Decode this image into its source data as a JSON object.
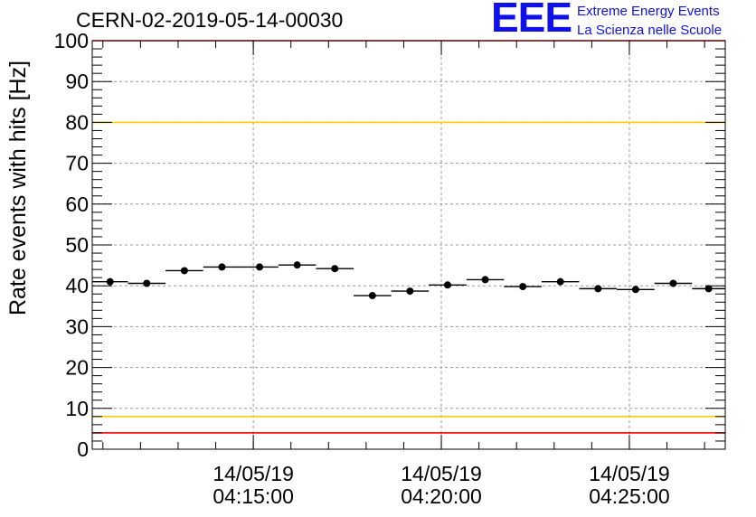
{
  "header": {
    "run_title": "CERN-02-2019-05-14-00030",
    "logo_mark": "EEE",
    "logo_line1": "Extreme Energy Events",
    "logo_line2": "La Scienza nelle Scuole"
  },
  "colors": {
    "axis": "#000000",
    "grid": "#9a9a9a",
    "points": "#000000",
    "red_limit": "#ff0000",
    "yellow_limit": "#ffcc00",
    "logo": "#1010e8"
  },
  "chart_data": {
    "type": "scatter",
    "title": "",
    "xlabel": "",
    "ylabel": "Rate events with hits [Hz]",
    "ylim": [
      0,
      100
    ],
    "yticks": [
      0,
      10,
      20,
      30,
      40,
      50,
      60,
      70,
      80,
      90,
      100
    ],
    "xlim": [
      "14/05/19 04:10:43",
      "14/05/19 04:27:33"
    ],
    "xticks": [
      {
        "x": "14/05/19 04:15:00",
        "line1": "14/05/19",
        "line2": "04:15:00"
      },
      {
        "x": "14/05/19 04:20:00",
        "line1": "14/05/19",
        "line2": "04:20:00"
      },
      {
        "x": "14/05/19 04:25:00",
        "line1": "14/05/19",
        "line2": "04:25:00"
      }
    ],
    "grid": true,
    "reference_lines": [
      {
        "y": 100,
        "color": "red"
      },
      {
        "y": 80,
        "color": "yellow"
      },
      {
        "y": 8,
        "color": "yellow"
      },
      {
        "y": 4,
        "color": "red"
      }
    ],
    "series": [
      {
        "points": [
          {
            "x": "14/05/19 04:10:43",
            "x_end": "14/05/19 04:11:40",
            "y": 41.0
          },
          {
            "x": "14/05/19 04:11:40",
            "x_end": "14/05/19 04:12:40",
            "y": 40.6
          },
          {
            "x": "14/05/19 04:12:40",
            "x_end": "14/05/19 04:13:40",
            "y": 43.7
          },
          {
            "x": "14/05/19 04:13:40",
            "x_end": "14/05/19 04:14:40",
            "y": 44.6
          },
          {
            "x": "14/05/19 04:14:40",
            "x_end": "14/05/19 04:15:40",
            "y": 44.6
          },
          {
            "x": "14/05/19 04:15:40",
            "x_end": "14/05/19 04:16:40",
            "y": 45.1
          },
          {
            "x": "14/05/19 04:16:40",
            "x_end": "14/05/19 04:17:40",
            "y": 44.2
          },
          {
            "x": "14/05/19 04:17:40",
            "x_end": "14/05/19 04:18:40",
            "y": 37.6
          },
          {
            "x": "14/05/19 04:18:40",
            "x_end": "14/05/19 04:19:40",
            "y": 38.7
          },
          {
            "x": "14/05/19 04:19:40",
            "x_end": "14/05/19 04:20:40",
            "y": 40.2
          },
          {
            "x": "14/05/19 04:20:40",
            "x_end": "14/05/19 04:21:40",
            "y": 41.5
          },
          {
            "x": "14/05/19 04:21:40",
            "x_end": "14/05/19 04:22:40",
            "y": 39.8
          },
          {
            "x": "14/05/19 04:22:40",
            "x_end": "14/05/19 04:23:40",
            "y": 41.0
          },
          {
            "x": "14/05/19 04:23:40",
            "x_end": "14/05/19 04:24:40",
            "y": 39.3
          },
          {
            "x": "14/05/19 04:24:40",
            "x_end": "14/05/19 04:25:40",
            "y": 39.1
          },
          {
            "x": "14/05/19 04:25:40",
            "x_end": "14/05/19 04:26:40",
            "y": 40.6
          },
          {
            "x": "14/05/19 04:26:40",
            "x_end": "14/05/19 04:27:33",
            "y": 39.3
          }
        ]
      }
    ]
  }
}
